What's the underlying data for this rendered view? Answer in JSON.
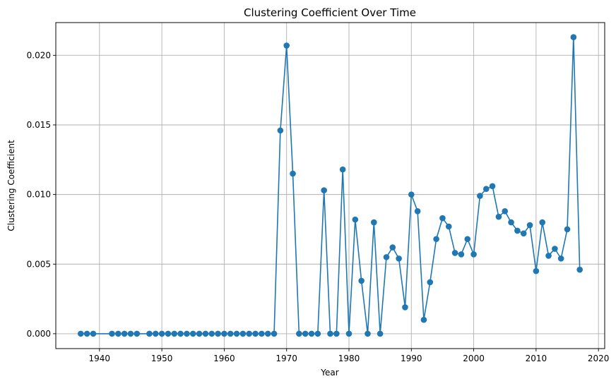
{
  "chart_data": {
    "type": "line",
    "title": "Clustering Coefficient Over Time",
    "xlabel": "Year",
    "ylabel": "Clustering Coefficient",
    "xlim": [
      1933,
      2021
    ],
    "ylim": [
      -0.00107,
      0.02235
    ],
    "xticks": [
      1940,
      1950,
      1960,
      1970,
      1980,
      1990,
      2000,
      2010,
      2020
    ],
    "yticks": [
      0.0,
      0.005,
      0.01,
      0.015,
      0.02
    ],
    "ytick_labels": [
      "0.000",
      "0.005",
      "0.010",
      "0.015",
      "0.020"
    ],
    "grid": true,
    "marker": "circle",
    "color": "#1f77b4",
    "x": [
      1937,
      1938,
      1939,
      1942,
      1943,
      1944,
      1945,
      1946,
      1948,
      1949,
      1950,
      1951,
      1952,
      1953,
      1954,
      1955,
      1956,
      1957,
      1958,
      1959,
      1960,
      1961,
      1962,
      1963,
      1964,
      1965,
      1966,
      1967,
      1968,
      1969,
      1970,
      1971,
      1972,
      1973,
      1974,
      1975,
      1976,
      1977,
      1978,
      1979,
      1980,
      1981,
      1982,
      1983,
      1984,
      1985,
      1986,
      1987,
      1988,
      1989,
      1990,
      1991,
      1992,
      1993,
      1994,
      1995,
      1996,
      1997,
      1998,
      1999,
      2000,
      2001,
      2002,
      2003,
      2004,
      2005,
      2006,
      2007,
      2008,
      2009,
      2010,
      2011,
      2012,
      2013,
      2014,
      2015,
      2016,
      2017
    ],
    "y": [
      0,
      0,
      0,
      0,
      0,
      0,
      0,
      0,
      0,
      0,
      0,
      0,
      0,
      0,
      0,
      0,
      0,
      0,
      0,
      0,
      0,
      0,
      0,
      0,
      0,
      0,
      0,
      0,
      0,
      0.0146,
      0.0207,
      0.0115,
      0,
      0,
      0,
      0,
      0.0103,
      0,
      0,
      0.0118,
      0,
      0.0082,
      0.0038,
      0,
      0.008,
      0,
      0.0055,
      0.0062,
      0.0054,
      0.0019,
      0.01,
      0.0088,
      0.001,
      0.0037,
      0.0068,
      0.0083,
      0.0077,
      0.0058,
      0.0057,
      0.0068,
      0.0057,
      0.0099,
      0.0104,
      0.0106,
      0.0084,
      0.0088,
      0.008,
      0.0074,
      0.0072,
      0.0078,
      0.0045,
      0.008,
      0.0056,
      0.0061,
      0.0054,
      0.0075,
      0.0213,
      0.0046
    ]
  }
}
